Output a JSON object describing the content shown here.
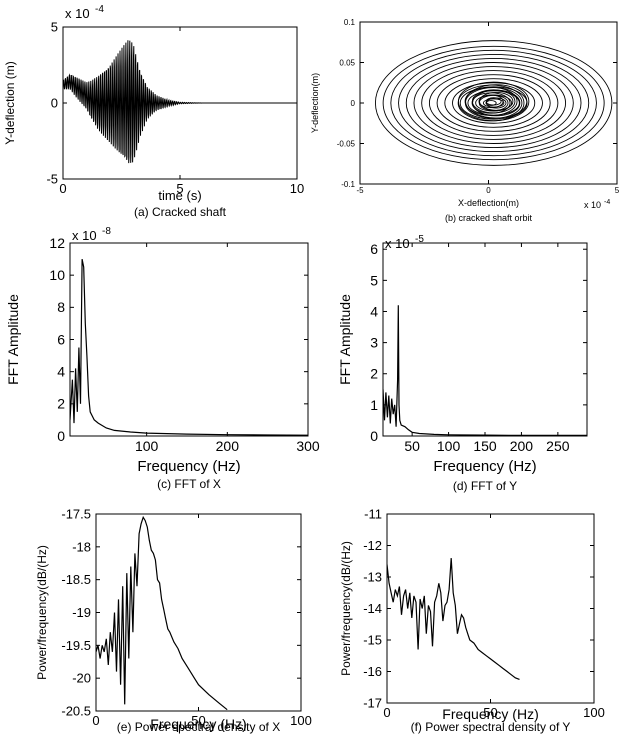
{
  "figure": {
    "background": "#ffffff",
    "line_color": "#000000"
  },
  "chart_data": [
    {
      "id": "a",
      "type": "line",
      "caption": "(a) Cracked shaft",
      "xlabel": "time (s)",
      "ylabel": "Y-deflection (m)",
      "exponent_label": "x 10",
      "exponent": "-4",
      "xlim": [
        0,
        10
      ],
      "ylim": [
        -5,
        5
      ],
      "xticks": [
        0,
        5,
        10
      ],
      "yticks": [
        -5,
        0,
        5
      ],
      "grid": false,
      "series": [
        {
          "values_note": "decaying oscillation; envelope [t, amplitude] pairs",
          "envelope": [
            [
              0.0,
              0.3
            ],
            [
              0.6,
              0.7
            ],
            [
              1.0,
              0.9
            ],
            [
              1.5,
              1.8
            ],
            [
              2.0,
              2.6
            ],
            [
              2.4,
              3.4
            ],
            [
              2.8,
              4.2
            ],
            [
              3.0,
              4.0
            ],
            [
              3.3,
              2.2
            ],
            [
              3.6,
              1.1
            ],
            [
              4.0,
              0.5
            ],
            [
              4.5,
              0.2
            ],
            [
              5.0,
              0.05
            ],
            [
              6.0,
              0.0
            ],
            [
              10.0,
              0.0
            ]
          ],
          "offset": [
            [
              0.0,
              1.2
            ],
            [
              0.3,
              1.4
            ],
            [
              0.6,
              1.0
            ],
            [
              0.9,
              0.6
            ],
            [
              1.2,
              0.2
            ],
            [
              1.5,
              0.0
            ],
            [
              10.0,
              0.0
            ]
          ]
        }
      ]
    },
    {
      "id": "b",
      "type": "line",
      "caption": "(b)  cracked shaft orbit",
      "xlabel": "X-deflection(m)",
      "ylabel": "Y-deflection(m)",
      "exponent_label": "x 10",
      "exponent": "-4",
      "xlim": [
        -5,
        5
      ],
      "ylim": [
        -0.1,
        0.1
      ],
      "xticks": [
        -5,
        0,
        5
      ],
      "yticks": [
        -0.1,
        -0.05,
        0,
        0.05,
        0.1
      ],
      "grid": false,
      "series": [
        {
          "orbit_radii_x": [
            0.4,
            0.7,
            1.0,
            1.3,
            1.6,
            1.9,
            2.2,
            2.5,
            2.8,
            3.1,
            3.4,
            3.7,
            4.0,
            4.3,
            4.6
          ],
          "orbit_radii_y": [
            0.005,
            0.01,
            0.015,
            0.02,
            0.025,
            0.03,
            0.035,
            0.04,
            0.045,
            0.05,
            0.055,
            0.06,
            0.065,
            0.07,
            0.077
          ]
        }
      ]
    },
    {
      "id": "c",
      "type": "line",
      "caption": "(c) FFT of X",
      "xlabel": "Frequency (Hz)",
      "ylabel": "FFT Amplitude",
      "exponent_label": "x 10",
      "exponent": "-8",
      "xlim": [
        5,
        300
      ],
      "ylim": [
        0,
        12
      ],
      "xticks": [
        100,
        200,
        300
      ],
      "yticks": [
        0,
        2,
        4,
        6,
        8,
        10,
        12
      ],
      "grid": false,
      "series": [
        {
          "x": [
            5,
            8,
            10,
            12,
            14,
            16,
            18,
            20,
            22,
            24,
            26,
            28,
            30,
            35,
            40,
            50,
            60,
            80,
            100,
            150,
            200,
            250,
            300
          ],
          "y": [
            1.0,
            3.5,
            0.8,
            4.2,
            1.5,
            5.5,
            2.0,
            11.0,
            10.5,
            7.0,
            5.0,
            2.5,
            1.5,
            1.0,
            0.8,
            0.5,
            0.35,
            0.25,
            0.18,
            0.12,
            0.08,
            0.06,
            0.05
          ]
        }
      ]
    },
    {
      "id": "d",
      "type": "line",
      "caption": "(d) FFT of Y",
      "xlabel": "Frequency (Hz)",
      "ylabel": "FFT Amplitude",
      "exponent_label": "x 10",
      "exponent": "-5",
      "xlim": [
        10,
        290
      ],
      "ylim": [
        0,
        6.2
      ],
      "xticks": [
        50,
        100,
        150,
        200,
        250
      ],
      "yticks": [
        0,
        1,
        2,
        3,
        4,
        5,
        6
      ],
      "grid": false,
      "series": [
        {
          "x": [
            10,
            12,
            14,
            16,
            18,
            20,
            22,
            24,
            26,
            28,
            30,
            31,
            32,
            33,
            35,
            40,
            45,
            50,
            60,
            80,
            100,
            150,
            200,
            290
          ],
          "y": [
            1.5,
            0.5,
            1.4,
            0.6,
            1.3,
            0.4,
            1.2,
            0.7,
            1.0,
            0.3,
            1.8,
            4.2,
            1.0,
            0.5,
            0.35,
            0.3,
            0.2,
            0.12,
            0.08,
            0.05,
            0.04,
            0.03,
            0.02,
            0.02
          ]
        }
      ]
    },
    {
      "id": "e",
      "type": "line",
      "caption": "(e)  Power spectral density of X",
      "xlabel": "Frequency (Hz)",
      "ylabel": "Power/frequency(dB/(Hz)",
      "xlim": [
        0,
        100
      ],
      "ylim": [
        -20.5,
        -17.5
      ],
      "xticks": [
        0,
        50,
        100
      ],
      "yticks": [
        -20.5,
        -20,
        -19.5,
        -19,
        -18.5,
        -18,
        -17.5
      ],
      "grid": false,
      "series": [
        {
          "x": [
            0,
            1,
            2,
            3,
            4,
            5,
            6,
            7,
            8,
            9,
            10,
            11,
            12,
            13,
            14,
            15,
            16,
            17,
            18,
            19,
            20,
            21,
            22,
            23,
            24,
            25,
            26,
            27,
            28,
            29,
            30,
            31,
            32,
            33,
            34,
            35,
            36,
            38,
            40,
            42,
            45,
            48,
            50,
            55,
            60,
            64
          ],
          "y": [
            -19.6,
            -19.5,
            -19.7,
            -19.5,
            -19.6,
            -19.4,
            -19.8,
            -19.3,
            -19.6,
            -19.0,
            -19.9,
            -18.8,
            -20.1,
            -18.6,
            -20.4,
            -18.4,
            -19.7,
            -18.3,
            -19.3,
            -18.1,
            -18.6,
            -17.8,
            -17.65,
            -17.55,
            -17.6,
            -17.7,
            -17.9,
            -18.05,
            -18.1,
            -18.2,
            -18.5,
            -18.55,
            -18.8,
            -18.95,
            -19.1,
            -19.25,
            -19.3,
            -19.45,
            -19.55,
            -19.7,
            -19.85,
            -20.0,
            -20.1,
            -20.25,
            -20.38,
            -20.48
          ]
        }
      ]
    },
    {
      "id": "f",
      "type": "line",
      "caption": "(f) Power spectral density of  Y",
      "xlabel": "Frequency (Hz)",
      "ylabel": "Power/frequency(dB/(Hz)",
      "xlim": [
        0,
        100
      ],
      "ylim": [
        -17,
        -11
      ],
      "xticks": [
        0,
        50,
        100
      ],
      "yticks": [
        -17,
        -16,
        -15,
        -14,
        -13,
        -12,
        -11
      ],
      "grid": false,
      "series": [
        {
          "x": [
            0,
            1,
            2,
            3,
            4,
            5,
            6,
            7,
            8,
            9,
            10,
            11,
            12,
            13,
            14,
            15,
            16,
            17,
            18,
            19,
            20,
            21,
            22,
            23,
            24,
            25,
            26,
            27,
            28,
            29,
            30,
            31,
            32,
            33,
            34,
            35,
            36,
            37,
            38,
            39,
            40,
            42,
            44,
            46,
            48,
            50,
            52,
            54,
            56,
            58,
            60,
            62,
            64
          ],
          "y": [
            -12.6,
            -13.2,
            -13.5,
            -13.8,
            -13.4,
            -13.6,
            -13.3,
            -14.2,
            -13.6,
            -13.4,
            -14.0,
            -13.5,
            -14.3,
            -13.6,
            -13.8,
            -15.3,
            -13.7,
            -14.0,
            -13.6,
            -14.8,
            -13.9,
            -14.1,
            -15.2,
            -13.8,
            -13.6,
            -13.2,
            -13.5,
            -14.4,
            -13.9,
            -13.8,
            -13.4,
            -12.4,
            -13.5,
            -13.9,
            -14.8,
            -14.5,
            -14.2,
            -14.3,
            -14.6,
            -14.8,
            -15.0,
            -15.1,
            -15.3,
            -15.4,
            -15.5,
            -15.6,
            -15.7,
            -15.8,
            -15.9,
            -16.0,
            -16.1,
            -16.2,
            -16.25
          ]
        }
      ]
    }
  ]
}
